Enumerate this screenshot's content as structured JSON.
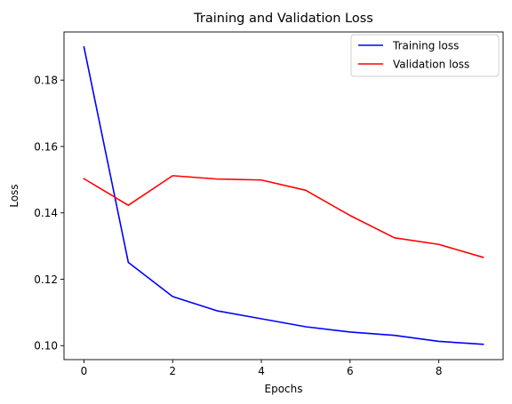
{
  "chart_data": {
    "type": "line",
    "title": "Training and Validation Loss",
    "xlabel": "Epochs",
    "ylabel": "Loss",
    "xlim": [
      -0.45,
      9.45
    ],
    "ylim": [
      0.0958,
      0.1945
    ],
    "xticks": [
      0,
      2,
      4,
      6,
      8
    ],
    "yticks": [
      0.1,
      0.12,
      0.14,
      0.16,
      0.18
    ],
    "ytick_labels": [
      "0.10",
      "0.12",
      "0.14",
      "0.16",
      "0.18"
    ],
    "grid": false,
    "legend_position": "top-right",
    "x": [
      0,
      1,
      2,
      3,
      4,
      5,
      6,
      7,
      8,
      9
    ],
    "series": [
      {
        "name": "Training loss",
        "color": "#0000ff",
        "values": [
          0.19,
          0.1251,
          0.1148,
          0.1105,
          0.1081,
          0.1057,
          0.1041,
          0.1031,
          0.1013,
          0.1004
        ]
      },
      {
        "name": "Validation loss",
        "color": "#ff0000",
        "values": [
          0.1503,
          0.1423,
          0.1512,
          0.1502,
          0.1499,
          0.1468,
          0.1392,
          0.1325,
          0.1305,
          0.1266
        ]
      }
    ]
  }
}
